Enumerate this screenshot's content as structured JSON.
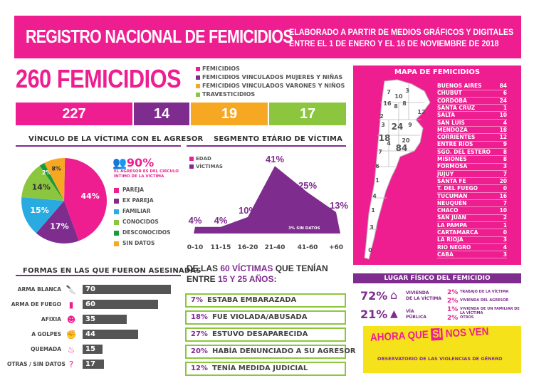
{
  "header": {
    "title": "REGISTRO NACIONAL DE FEMICIDIOS",
    "subtitle_line1": "ELABORADO A PARTIR DE MEDIOS GRÁFICOS Y DIGITALES",
    "subtitle_line2": "ENTRE EL 1 DE ENERO Y EL 16 DE NOVIEMBRE DE 2018"
  },
  "total": "260 FEMICIDIOS",
  "categories": [
    {
      "label": "FEMICIDIOS",
      "value": "227",
      "color": "#ee1e91"
    },
    {
      "label": "FEMICIDIOS VINCULADOS MUJERES Y NIÑAS",
      "value": "14",
      "color": "#7f2c8f"
    },
    {
      "label": "FEMICIDIOS VINCULADOS VARONES Y NIÑOS",
      "value": "19",
      "color": "#f7a823"
    },
    {
      "label": "TRAVESTICIDIOS",
      "value": "17",
      "color": "#8cc63f"
    }
  ],
  "vinculo": {
    "title": "VÍNCULO DE LA VÍCTIMA CON EL AGRESOR",
    "highlight_pct": "90%",
    "highlight_text1": "EL AGRESOR ES DEL CIRCULO",
    "highlight_text2": "ÍNTIMO DE LA VÍCTIMA",
    "slices": [
      {
        "label": "PAREJA",
        "pct": "44%",
        "value": 44,
        "color": "#ee1e91"
      },
      {
        "label": "EX PAREJA",
        "pct": "17%",
        "value": 17,
        "color": "#7f2c8f"
      },
      {
        "label": "FAMILIAR",
        "pct": "15%",
        "value": 15,
        "color": "#29abe2"
      },
      {
        "label": "CONOCIDOS",
        "pct": "14%",
        "value": 14,
        "color": "#8cc63f"
      },
      {
        "label": "DESCONOCIDOS",
        "pct": "2%",
        "value": 2,
        "color": "#1a9b3a"
      },
      {
        "label": "SIN DATOS",
        "pct": "8%",
        "value": 8,
        "color": "#f7a823"
      }
    ]
  },
  "edad": {
    "title": "SEGMENTO ETÁRIO DE VÍCTIMA",
    "legend_edad": "EDAD",
    "legend_victimas": "VÍCTIMAS",
    "note": "3% SIN DATOS",
    "groups": [
      "0-10",
      "11-15",
      "16-20",
      "21-40",
      "41-60",
      "+60"
    ],
    "pcts": [
      "4%",
      "4%",
      "10%",
      "41%",
      "25%",
      "13%"
    ],
    "values": [
      4,
      4,
      10,
      41,
      25,
      13
    ]
  },
  "formas": {
    "title": "FORMAS EN LAS QUE FUERON ASESINADAS",
    "items": [
      {
        "label": "ARMA BLANCA",
        "value": "70",
        "n": 70,
        "icon": "knife-icon",
        "glyph": "🔪"
      },
      {
        "label": "ARMA DE FUEGO",
        "value": "60",
        "n": 60,
        "icon": "gun-icon",
        "glyph": "▮"
      },
      {
        "label": "AFIXIA",
        "value": "35",
        "n": 35,
        "icon": "asphyxia-icon",
        "glyph": "☻"
      },
      {
        "label": "A GOLPES",
        "value": "44",
        "n": 44,
        "icon": "fist-icon",
        "glyph": "✊"
      },
      {
        "label": "QUEMADA",
        "value": "15",
        "n": 15,
        "icon": "fire-icon",
        "glyph": "♨"
      },
      {
        "label": "OTRAS / SIN DATOS",
        "value": "17",
        "n": 17,
        "icon": "question-icon",
        "glyph": "?"
      }
    ]
  },
  "victimas": {
    "heading_a": "DE LAS ",
    "heading_b": "60 VÍCTIMAS",
    "heading_c": " QUE TENÍAN",
    "heading_d": "ENTRE ",
    "heading_e": "15 Y 25 AÑOS",
    "heading_f": ":",
    "rows": [
      {
        "pct": "7%",
        "text": "ESTABA EMBARAZADA"
      },
      {
        "pct": "18%",
        "text": "FUE VIOLADA/ABUSADA"
      },
      {
        "pct": "27%",
        "text": "ESTUVO DESAPARECIDA"
      },
      {
        "pct": "20%",
        "text": "HABÍA DENUNCIADO A SU AGRESOR"
      },
      {
        "pct": "12%",
        "text": "TENÍA MEDIDA JUDICIAL"
      }
    ]
  },
  "mapa": {
    "title": "MAPA DE FEMICIDIOS",
    "provinces": [
      {
        "name": "BUENOS AIRES",
        "value": "84"
      },
      {
        "name": "CHUBUT",
        "value": "6"
      },
      {
        "name": "CORDOBA",
        "value": "24"
      },
      {
        "name": "SANTA CRUZ",
        "value": "1"
      },
      {
        "name": "SALTA",
        "value": "10"
      },
      {
        "name": "SAN LUIS",
        "value": "4"
      },
      {
        "name": "MENDOZA",
        "value": "18"
      },
      {
        "name": "CORRIENTES",
        "value": "12"
      },
      {
        "name": "ENTRE RIOS",
        "value": "9"
      },
      {
        "name": "SGO. DEL ESTERO",
        "value": "8"
      },
      {
        "name": "MISIONES",
        "value": "8"
      },
      {
        "name": "FORMOSA",
        "value": "3"
      },
      {
        "name": "JUJUY",
        "value": "7"
      },
      {
        "name": "SANTA FE",
        "value": "20"
      },
      {
        "name": "T. DEL FUEGO",
        "value": "0"
      },
      {
        "name": "TUCUMAN",
        "value": "16"
      },
      {
        "name": "NEUQUÉN",
        "value": "7"
      },
      {
        "name": "CHACO",
        "value": "10"
      },
      {
        "name": "SAN JUAN",
        "value": "2"
      },
      {
        "name": "LA PAMPA",
        "value": "1"
      },
      {
        "name": "CARTAMARCA",
        "value": "0"
      },
      {
        "name": "LA RIOJA",
        "value": "3"
      },
      {
        "name": "RIO NEGRO",
        "value": "4"
      },
      {
        "name": "CABA",
        "value": "3"
      }
    ],
    "map_numbers": [
      "7",
      "10",
      "3",
      "16",
      "8",
      "8",
      "12",
      "2",
      "3",
      "24",
      "9",
      "18",
      "4",
      "20",
      "7",
      "84",
      "6",
      "1",
      "4",
      "1",
      "3",
      "0"
    ]
  },
  "lugar": {
    "title": "LUGAR FÍSICO DEL FEMICIDIO",
    "vivienda_pct": "72%",
    "vivienda_label1": "VIVIENDA",
    "vivienda_label2": "DE LA VÍCTIMA",
    "via_pct": "21%",
    "via_label1": "VÍA",
    "via_label2": "PÚBLICA",
    "others": [
      {
        "pct": "2%",
        "text": "TRABAJO DE LA VÍCTIMA"
      },
      {
        "pct": "2%",
        "text": "VIVIENDA DEL AGRESOR"
      },
      {
        "pct": "1%",
        "text": "VIVIENDA DE UN FAMILIAR DE LA VÍCTIMA"
      },
      {
        "pct": "2%",
        "text": "OTROS"
      }
    ]
  },
  "footer": {
    "logo_a": "AHORA QUE",
    "logo_b": "SÍ",
    "logo_c": "NOS VEN",
    "observatorio": "OBSERVATORIO DE LAS VIOLENCIAS DE GÉNERO"
  }
}
